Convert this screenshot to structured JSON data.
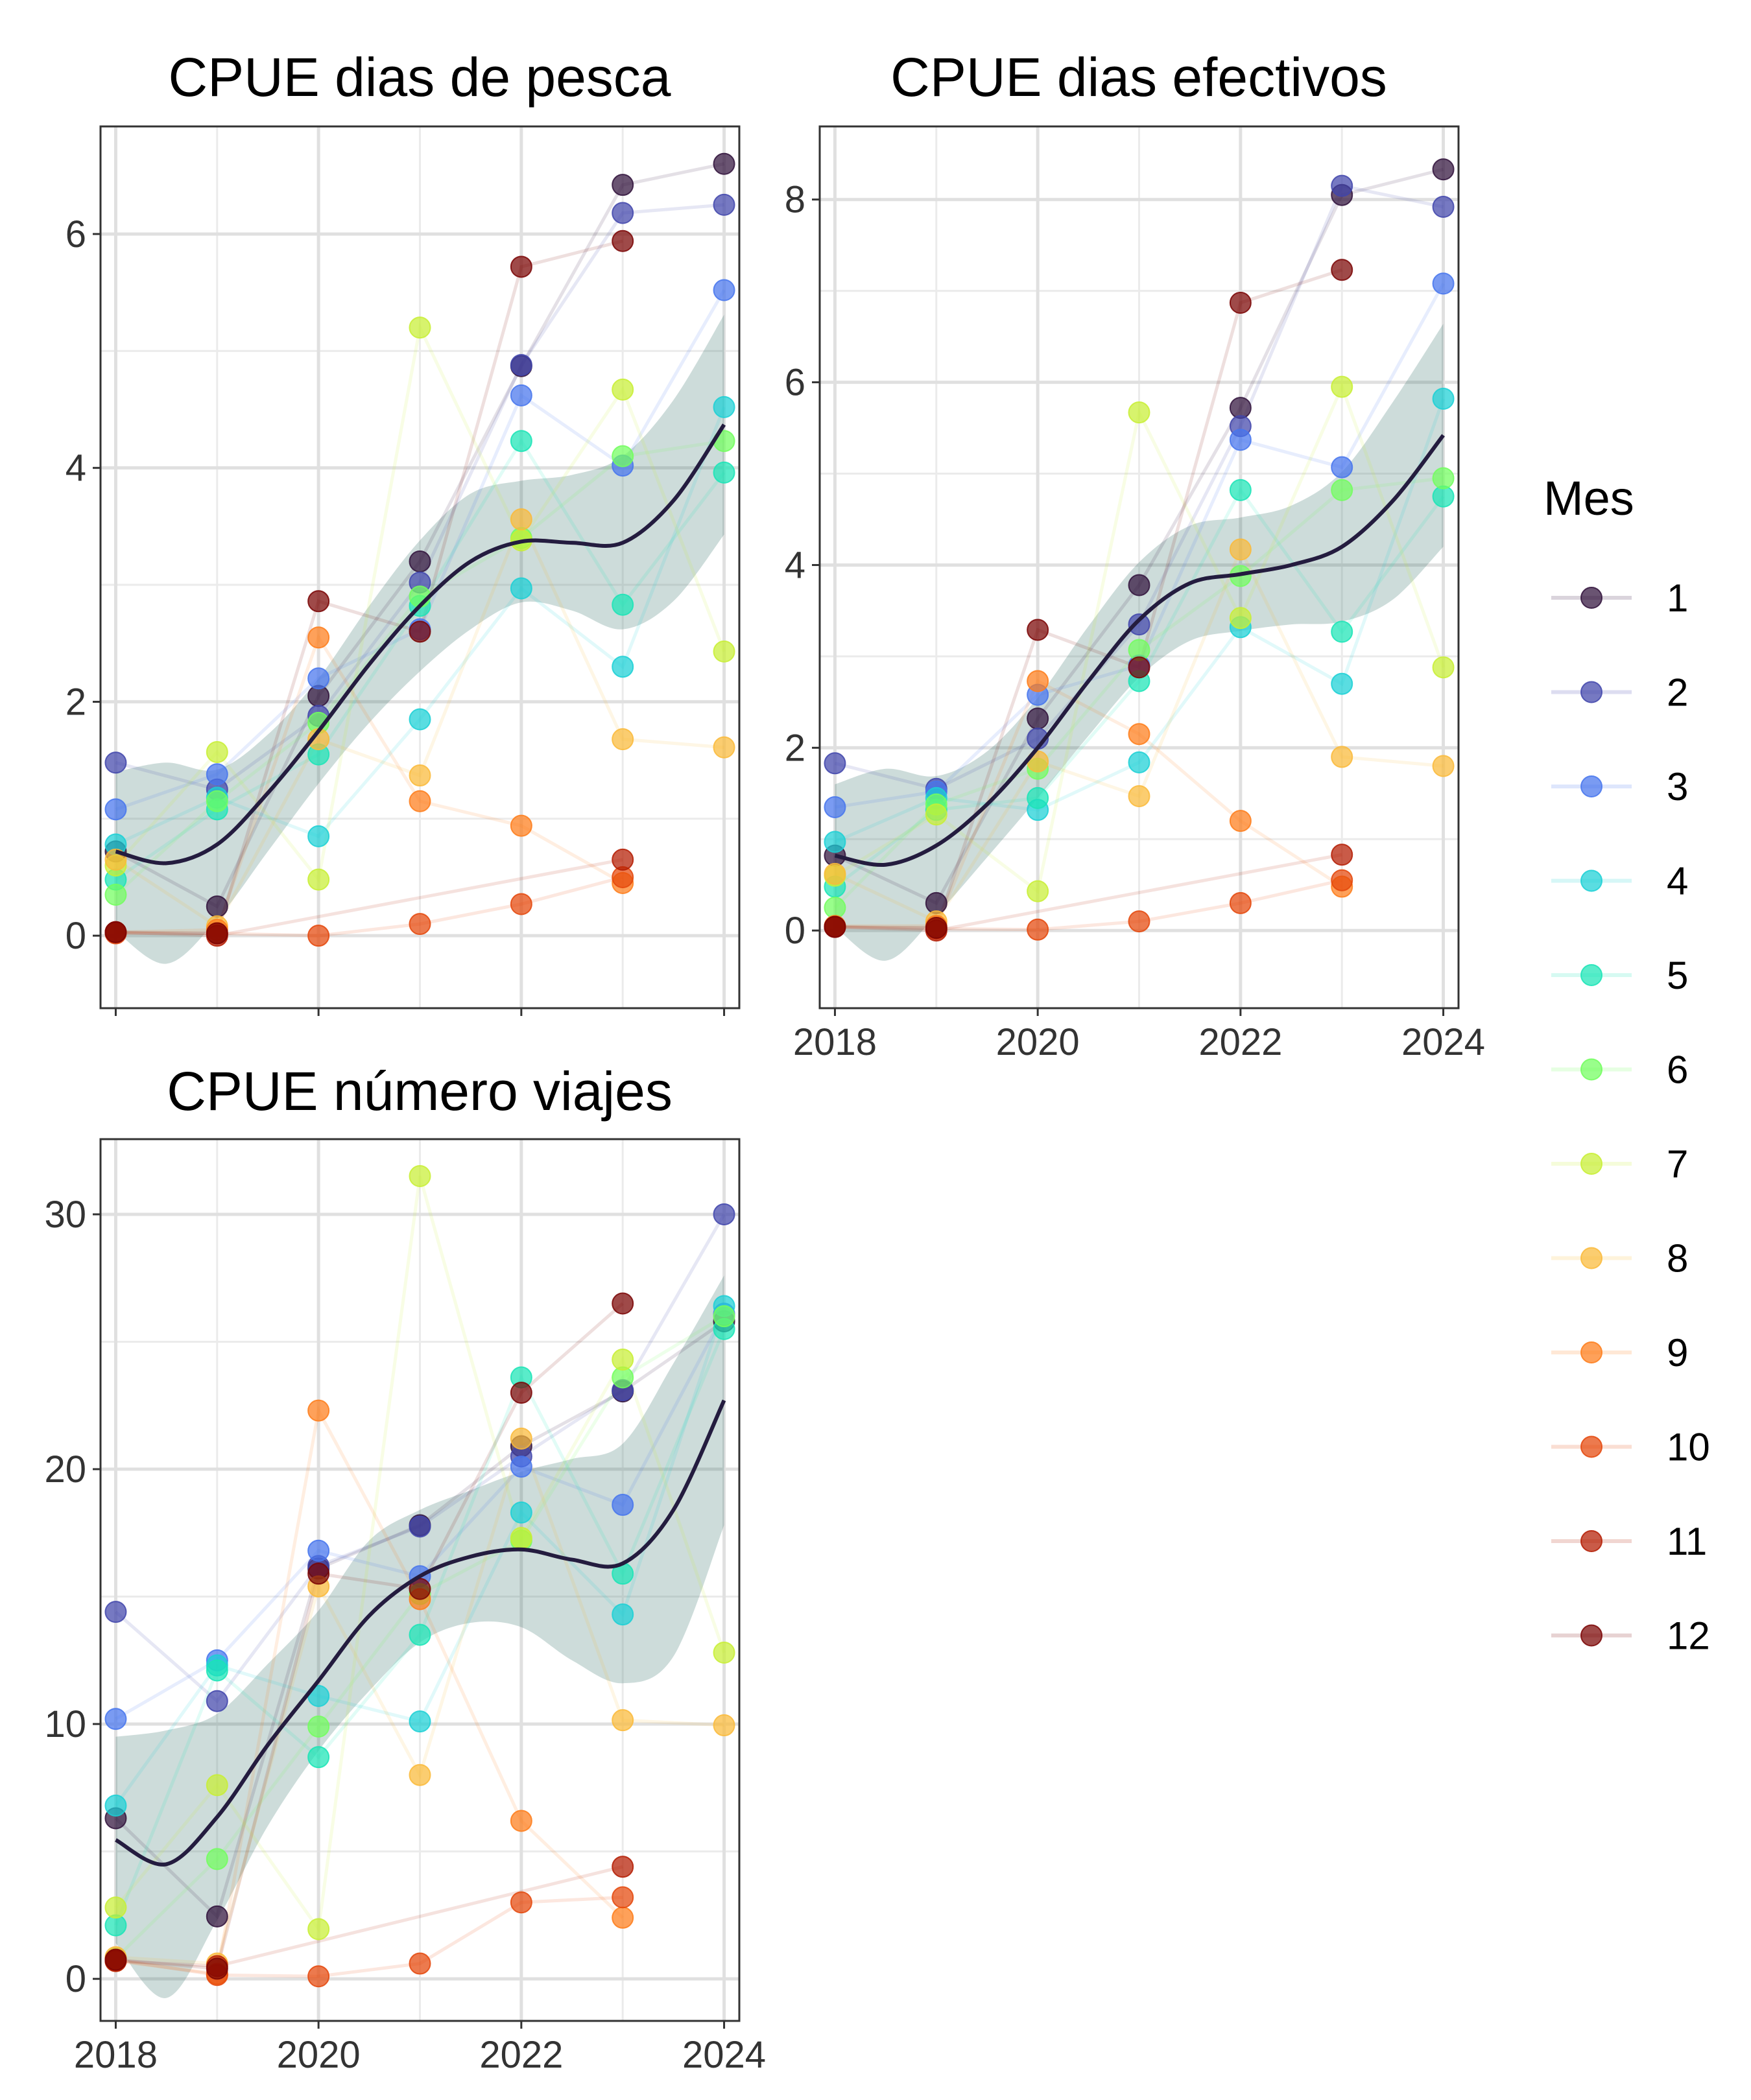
{
  "legend": {
    "title": "Mes",
    "items": [
      {
        "label": "1",
        "color": "#30123B"
      },
      {
        "label": "2",
        "color": "#4145AB"
      },
      {
        "label": "3",
        "color": "#4675ED"
      },
      {
        "label": "4",
        "color": "#1BD0D5"
      },
      {
        "label": "5",
        "color": "#1AE4B6"
      },
      {
        "label": "6",
        "color": "#72FE5E"
      },
      {
        "label": "7",
        "color": "#C8EF34"
      },
      {
        "label": "8",
        "color": "#FABA39"
      },
      {
        "label": "9",
        "color": "#FE7D1A"
      },
      {
        "label": "10",
        "color": "#E4460A"
      },
      {
        "label": "11",
        "color": "#B41C02"
      },
      {
        "label": "12",
        "color": "#7A0403"
      }
    ]
  },
  "chart_data": [
    {
      "type": "scatter",
      "title": "CPUE dias de pesca",
      "xlim": [
        2017.85,
        2024.15
      ],
      "ylim": [
        -0.62,
        6.92
      ],
      "xticks": [
        2018,
        2020,
        2022,
        2024
      ],
      "yticks": [
        0,
        2,
        4,
        6
      ],
      "show_x_tick_labels": false,
      "series": [
        {
          "name": "1",
          "x": [
            2018,
            2019,
            2020,
            2021,
            2022,
            2023,
            2024
          ],
          "y": [
            0.72,
            0.25,
            2.05,
            3.2,
            4.87,
            6.42,
            6.6
          ]
        },
        {
          "name": "2",
          "x": [
            2018,
            2019,
            2020,
            2021,
            2022,
            2023,
            2024
          ],
          "y": [
            1.48,
            1.25,
            1.88,
            3.02,
            4.88,
            6.18,
            6.25
          ]
        },
        {
          "name": "3",
          "x": [
            2018,
            2019,
            2020,
            2021,
            2022,
            2023,
            2024
          ],
          "y": [
            1.08,
            1.38,
            2.2,
            2.62,
            4.62,
            4.02,
            5.52
          ]
        },
        {
          "name": "4",
          "x": [
            2018,
            2019,
            2020,
            2021,
            2022,
            2023,
            2024
          ],
          "y": [
            0.78,
            1.18,
            0.85,
            1.85,
            2.97,
            2.3,
            4.52
          ]
        },
        {
          "name": "5",
          "x": [
            2018,
            2019,
            2020,
            2021,
            2022,
            2023,
            2024
          ],
          "y": [
            0.48,
            1.08,
            1.55,
            2.82,
            4.23,
            2.83,
            3.96
          ]
        },
        {
          "name": "6",
          "x": [
            2018,
            2019,
            2020,
            2021,
            2022,
            2023,
            2024
          ],
          "y": [
            0.35,
            1.15,
            1.82,
            2.9,
            3.4,
            4.1,
            4.23
          ]
        },
        {
          "name": "7",
          "x": [
            2018,
            2019,
            2020,
            2021,
            2022,
            2023,
            2024
          ],
          "y": [
            0.6,
            1.57,
            0.48,
            5.2,
            3.38,
            4.67,
            2.43
          ]
        },
        {
          "name": "8",
          "x": [
            2018,
            2019,
            2020,
            2021,
            2022,
            2023,
            2024
          ],
          "y": [
            0.65,
            0.08,
            1.68,
            1.37,
            3.56,
            1.68,
            1.61
          ]
        },
        {
          "name": "9",
          "x": [
            2018,
            2019,
            2020,
            2021,
            2022,
            2023
          ],
          "y": [
            0.03,
            0.05,
            2.55,
            1.15,
            0.94,
            0.45
          ]
        },
        {
          "name": "10",
          "x": [
            2018,
            2019,
            2020,
            2021,
            2022,
            2023
          ],
          "y": [
            0.02,
            0.02,
            0.0,
            0.1,
            0.27,
            0.5
          ]
        },
        {
          "name": "11",
          "x": [
            2018,
            2019,
            2023
          ],
          "y": [
            0.03,
            0.0,
            0.65
          ]
        },
        {
          "name": "12",
          "x": [
            2018,
            2019,
            2020,
            2021,
            2022,
            2023
          ],
          "y": [
            0.03,
            0.02,
            2.86,
            2.6,
            5.72,
            5.94
          ]
        }
      ],
      "trend": {
        "x": [
          2018,
          2018.5,
          2019,
          2019.5,
          2020,
          2020.5,
          2021,
          2021.5,
          2022,
          2022.5,
          2023,
          2023.5,
          2024
        ],
        "y": [
          0.72,
          0.62,
          0.78,
          1.22,
          1.75,
          2.32,
          2.82,
          3.2,
          3.37,
          3.36,
          3.36,
          3.72,
          4.37
        ],
        "lower": [
          0.04,
          -0.24,
          0.14,
          0.72,
          1.3,
          1.82,
          2.26,
          2.62,
          2.85,
          2.78,
          2.62,
          2.86,
          3.43
        ],
        "upper": [
          1.4,
          1.48,
          1.42,
          1.72,
          2.2,
          2.82,
          3.38,
          3.78,
          3.89,
          3.94,
          4.1,
          4.58,
          5.31
        ]
      }
    },
    {
      "type": "scatter",
      "title": "CPUE dias efectivos",
      "xlim": [
        2017.85,
        2024.15
      ],
      "ylim": [
        -0.85,
        8.8
      ],
      "xticks": [
        2018,
        2020,
        2022,
        2024
      ],
      "yticks": [
        0,
        2,
        4,
        6,
        8
      ],
      "show_x_tick_labels": true,
      "series": [
        {
          "name": "1",
          "x": [
            2018,
            2019,
            2020,
            2021,
            2022,
            2023,
            2024
          ],
          "y": [
            0.82,
            0.3,
            2.32,
            3.78,
            5.72,
            8.05,
            8.33
          ]
        },
        {
          "name": "2",
          "x": [
            2018,
            2019,
            2020,
            2021,
            2022,
            2023,
            2024
          ],
          "y": [
            1.83,
            1.55,
            2.1,
            3.35,
            5.52,
            8.15,
            7.92
          ]
        },
        {
          "name": "3",
          "x": [
            2018,
            2019,
            2020,
            2021,
            2022,
            2023,
            2024
          ],
          "y": [
            1.35,
            1.52,
            2.58,
            2.9,
            5.37,
            5.07,
            7.08
          ]
        },
        {
          "name": "4",
          "x": [
            2018,
            2019,
            2020,
            2021,
            2022,
            2023,
            2024
          ],
          "y": [
            0.97,
            1.45,
            1.32,
            1.84,
            3.32,
            2.7,
            5.82
          ]
        },
        {
          "name": "5",
          "x": [
            2018,
            2019,
            2020,
            2021,
            2022,
            2023,
            2024
          ],
          "y": [
            0.48,
            1.32,
            1.45,
            2.73,
            4.82,
            3.27,
            4.75
          ]
        },
        {
          "name": "6",
          "x": [
            2018,
            2019,
            2020,
            2021,
            2022,
            2023,
            2024
          ],
          "y": [
            0.25,
            1.38,
            1.77,
            3.07,
            3.88,
            4.82,
            4.95
          ]
        },
        {
          "name": "7",
          "x": [
            2018,
            2019,
            2020,
            2021,
            2022,
            2023,
            2024
          ],
          "y": [
            0.6,
            1.27,
            0.43,
            5.67,
            3.42,
            5.95,
            2.88
          ]
        },
        {
          "name": "8",
          "x": [
            2018,
            2019,
            2020,
            2021,
            2022,
            2023,
            2024
          ],
          "y": [
            0.62,
            0.1,
            1.85,
            1.47,
            4.17,
            1.9,
            1.8
          ]
        },
        {
          "name": "9",
          "x": [
            2018,
            2019,
            2020,
            2021,
            2022,
            2023
          ],
          "y": [
            0.05,
            0.05,
            2.73,
            2.15,
            1.2,
            0.48
          ]
        },
        {
          "name": "10",
          "x": [
            2018,
            2019,
            2020,
            2021,
            2022,
            2023
          ],
          "y": [
            0.04,
            0.02,
            0.01,
            0.1,
            0.3,
            0.55
          ]
        },
        {
          "name": "11",
          "x": [
            2018,
            2019,
            2023
          ],
          "y": [
            0.04,
            0.0,
            0.83
          ]
        },
        {
          "name": "12",
          "x": [
            2018,
            2019,
            2020,
            2021,
            2022,
            2023
          ],
          "y": [
            0.04,
            0.03,
            3.29,
            2.88,
            6.87,
            7.23
          ]
        }
      ],
      "trend": {
        "x": [
          2018,
          2018.5,
          2019,
          2019.5,
          2020,
          2020.5,
          2021,
          2021.5,
          2022,
          2022.5,
          2023,
          2023.5,
          2024
        ],
        "y": [
          0.82,
          0.72,
          0.93,
          1.38,
          2.0,
          2.73,
          3.4,
          3.8,
          3.9,
          4.0,
          4.2,
          4.7,
          5.42
        ],
        "lower": [
          0.04,
          -0.33,
          0.17,
          0.8,
          1.45,
          2.13,
          2.77,
          3.17,
          3.28,
          3.35,
          3.38,
          3.62,
          4.2
        ],
        "upper": [
          1.6,
          1.77,
          1.69,
          1.96,
          2.55,
          3.33,
          4.03,
          4.43,
          4.52,
          4.65,
          5.02,
          5.78,
          6.64
        ]
      }
    },
    {
      "type": "scatter",
      "title": "CPUE número viajes",
      "xlim": [
        2017.85,
        2024.15
      ],
      "ylim": [
        -1.65,
        32.95
      ],
      "xticks": [
        2018,
        2020,
        2022,
        2024
      ],
      "yticks": [
        0,
        10,
        20,
        30
      ],
      "show_x_tick_labels": true,
      "series": [
        {
          "name": "1",
          "x": [
            2018,
            2019,
            2020,
            2021,
            2022,
            2023,
            2024
          ],
          "y": [
            6.3,
            2.45,
            16.1,
            17.8,
            20.9,
            23.05,
            25.8
          ]
        },
        {
          "name": "2",
          "x": [
            2018,
            2019,
            2020,
            2021,
            2022,
            2023,
            2024
          ],
          "y": [
            14.4,
            10.9,
            16.2,
            17.75,
            20.5,
            23.1,
            30.0
          ]
        },
        {
          "name": "3",
          "x": [
            2018,
            2019,
            2020,
            2021,
            2022,
            2023,
            2024
          ],
          "y": [
            10.2,
            12.5,
            16.8,
            15.8,
            20.1,
            18.6,
            26.1
          ]
        },
        {
          "name": "4",
          "x": [
            2018,
            2019,
            2020,
            2021,
            2022,
            2023,
            2024
          ],
          "y": [
            6.8,
            12.3,
            11.1,
            10.1,
            18.3,
            14.3,
            26.4
          ]
        },
        {
          "name": "5",
          "x": [
            2018,
            2019,
            2020,
            2021,
            2022,
            2023,
            2024
          ],
          "y": [
            2.1,
            12.1,
            8.7,
            13.5,
            23.6,
            15.9,
            25.5
          ]
        },
        {
          "name": "6",
          "x": [
            2018,
            2019,
            2020,
            2021,
            2022,
            2023,
            2024
          ],
          "y": [
            0.8,
            4.7,
            9.9,
            15.1,
            17.2,
            23.6,
            26.0
          ]
        },
        {
          "name": "7",
          "x": [
            2018,
            2019,
            2020,
            2021,
            2022,
            2023,
            2024
          ],
          "y": [
            2.8,
            7.6,
            1.95,
            31.5,
            17.3,
            24.3,
            12.8
          ]
        },
        {
          "name": "8",
          "x": [
            2018,
            2019,
            2020,
            2021,
            2022,
            2023,
            2024
          ],
          "y": [
            0.85,
            0.6,
            15.4,
            8.0,
            21.2,
            10.15,
            9.95
          ]
        },
        {
          "name": "9",
          "x": [
            2018,
            2019,
            2020,
            2021,
            2022,
            2023
          ],
          "y": [
            0.7,
            0.2,
            22.3,
            14.9,
            6.2,
            2.4
          ]
        },
        {
          "name": "10",
          "x": [
            2018,
            2019,
            2020,
            2021,
            2022,
            2023
          ],
          "y": [
            0.75,
            0.15,
            0.1,
            0.6,
            3.0,
            3.2
          ]
        },
        {
          "name": "11",
          "x": [
            2018,
            2019,
            2023
          ],
          "y": [
            0.7,
            0.5,
            4.4
          ]
        },
        {
          "name": "12",
          "x": [
            2018,
            2019,
            2020,
            2021,
            2022,
            2023
          ],
          "y": [
            0.75,
            0.4,
            15.9,
            15.3,
            23.0,
            26.5
          ]
        }
      ],
      "trend": {
        "x": [
          2018,
          2018.5,
          2019,
          2019.5,
          2020,
          2020.5,
          2021,
          2021.5,
          2022,
          2022.5,
          2023,
          2023.5,
          2024
        ],
        "y": [
          5.45,
          4.5,
          6.35,
          9.18,
          11.7,
          14.25,
          15.8,
          16.57,
          16.85,
          16.45,
          16.3,
          18.4,
          22.7
        ],
        "lower": [
          1.4,
          -0.75,
          2.3,
          6.0,
          8.95,
          11.3,
          13.2,
          13.97,
          13.8,
          12.5,
          11.6,
          12.65,
          17.8
        ],
        "upper": [
          9.5,
          9.75,
          10.4,
          12.36,
          14.45,
          17.2,
          18.4,
          19.17,
          19.9,
          20.4,
          21.0,
          24.15,
          27.6
        ]
      }
    }
  ]
}
